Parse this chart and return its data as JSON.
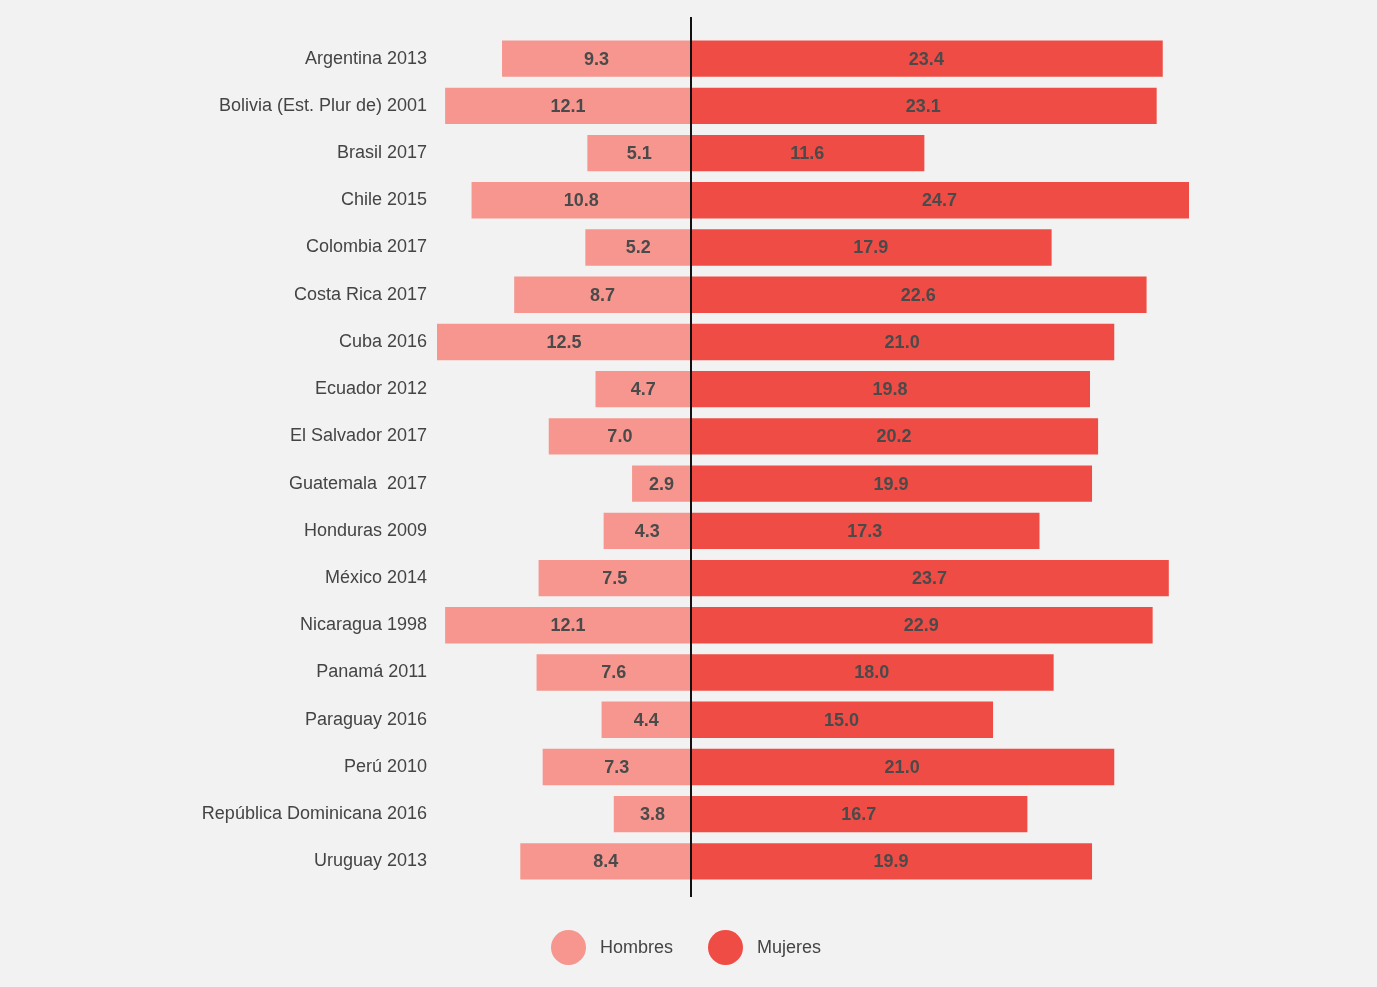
{
  "chart_data": [
    {
      "type": "bar",
      "orientation": "horizontal",
      "categories": [
        "Argentina 2013",
        "Bolivia (Est. Plur de) 2001",
        "Brasil 2017",
        "Chile 2015",
        "Colombia 2017",
        "Costa Rica 2017",
        "Cuba 2016",
        "Ecuador 2012",
        "El Salvador 2017",
        "Guatemala  2017",
        "Honduras 2009",
        "México 2014",
        "Nicaragua 1998",
        "Panamá 2011",
        "Paraguay 2016",
        "Perú 2010",
        "República Dominicana 2016",
        "Uruguay 2013"
      ],
      "series": [
        {
          "name": "Hombres",
          "color": "#f6968f",
          "values": [
            9.3,
            12.1,
            5.1,
            10.8,
            5.2,
            8.7,
            12.5,
            4.7,
            7.0,
            2.9,
            4.3,
            7.5,
            12.1,
            7.6,
            4.4,
            7.3,
            3.8,
            8.4
          ],
          "value_labels": [
            "9.3",
            "12.1",
            "5.1",
            "10.8",
            "5.2",
            "8.7",
            "12.5",
            "4.7",
            "7.0",
            "2.9",
            "4.3",
            "7.5",
            "12.1",
            "7.6",
            "4.4",
            "7.3",
            "3.8",
            "8.4"
          ]
        }
      ],
      "xlim": [
        12.5,
        0
      ],
      "tick_labels": "y",
      "legend": "bottom"
    },
    {
      "type": "bar",
      "orientation": "horizontal",
      "categories": [
        null,
        null,
        null,
        null,
        null,
        null,
        null,
        null,
        null,
        null,
        null,
        null,
        null,
        null,
        null,
        null,
        null,
        null
      ],
      "series": [
        {
          "name": "Mujeres",
          "color": "#ef4c45",
          "values": [
            23.4,
            23.1,
            11.6,
            24.7,
            17.9,
            22.6,
            21.0,
            19.8,
            20.2,
            19.9,
            17.3,
            23.7,
            22.9,
            18.0,
            15.0,
            21.0,
            16.7,
            19.9
          ],
          "value_labels": [
            "23.4",
            "23.1",
            "11.6",
            "24.7",
            "17.9",
            "22.6",
            "21.0",
            "19.8",
            "20.2",
            "19.9",
            "17.3",
            "23.7",
            "22.9",
            "18.0",
            "15.0",
            "21.0",
            "16.7",
            "19.9"
          ]
        }
      ],
      "xlim": [
        0,
        24.7
      ],
      "tick_labels": false,
      "legend": "bottom"
    }
  ]
}
